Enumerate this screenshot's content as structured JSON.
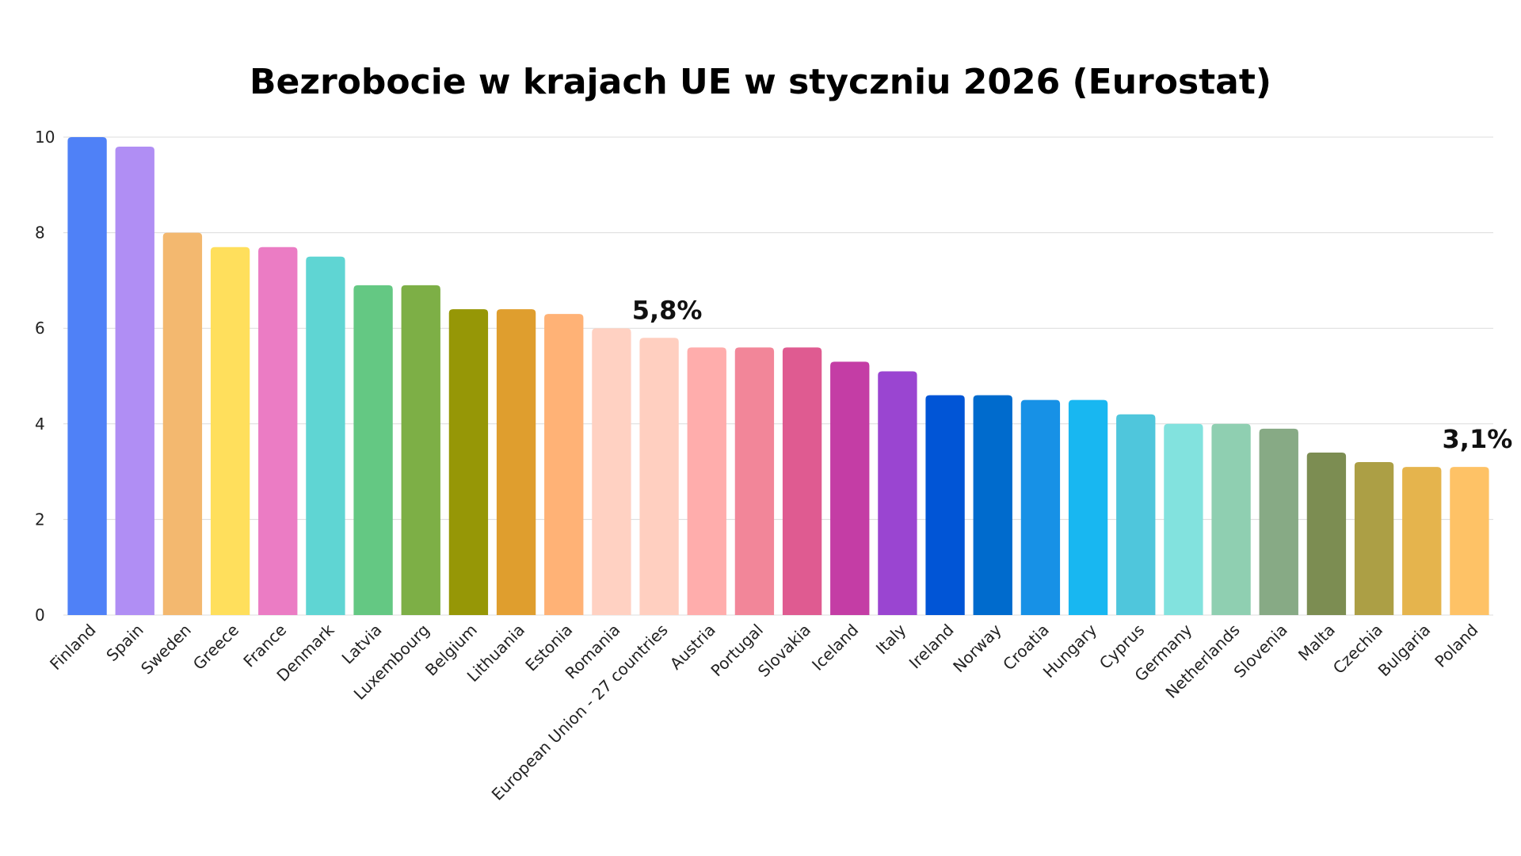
{
  "chart_data": {
    "type": "bar",
    "title": "Bezrobocie w krajach UE w styczniu 2026 (Eurostat)",
    "xlabel": "",
    "ylabel": "",
    "ylim": [
      0,
      10
    ],
    "yticks": [
      0,
      2,
      4,
      6,
      8,
      10
    ],
    "grid": true,
    "categories": [
      "Finland",
      "Spain",
      "Sweden",
      "Greece",
      "France",
      "Denmark",
      "Latvia",
      "Luxembourg",
      "Belgium",
      "Lithuania",
      "Estonia",
      "Romania",
      "European Union - 27 countries",
      "Austria",
      "Portugal",
      "Slovakia",
      "Iceland",
      "Italy",
      "Ireland",
      "Norway",
      "Croatia",
      "Hungary",
      "Cyprus",
      "Germany",
      "Netherlands",
      "Slovenia",
      "Malta",
      "Czechia",
      "Bulgaria",
      "Poland"
    ],
    "values": [
      10.0,
      9.8,
      8.0,
      7.7,
      7.7,
      7.5,
      6.9,
      6.9,
      6.4,
      6.4,
      6.3,
      6.0,
      5.8,
      5.6,
      5.6,
      5.6,
      5.3,
      5.1,
      4.6,
      4.6,
      4.5,
      4.5,
      4.2,
      4.0,
      4.0,
      3.9,
      3.4,
      3.2,
      3.1,
      3.1
    ],
    "colors": [
      "#4f81f7",
      "#b08ef4",
      "#f3b86f",
      "#ffdf5c",
      "#eb7cc4",
      "#5fd5d3",
      "#64c883",
      "#7daf46",
      "#969706",
      "#df9e2e",
      "#ffb276",
      "#ffd1c2",
      "#ffcfc0",
      "#ffadac",
      "#f28699",
      "#df5b91",
      "#c43da5",
      "#9a45d1",
      "#0155d6",
      "#006bcd",
      "#1791e6",
      "#18b7f1",
      "#4fc6dc",
      "#82e2de",
      "#8fcfb1",
      "#87aa85",
      "#7c8d52",
      "#ac9f45",
      "#e5b44d",
      "#fec266"
    ],
    "annotations": [
      {
        "category": "European Union - 27 countries",
        "text": "5,8%"
      },
      {
        "category": "Poland",
        "text": "3,1%"
      }
    ]
  }
}
